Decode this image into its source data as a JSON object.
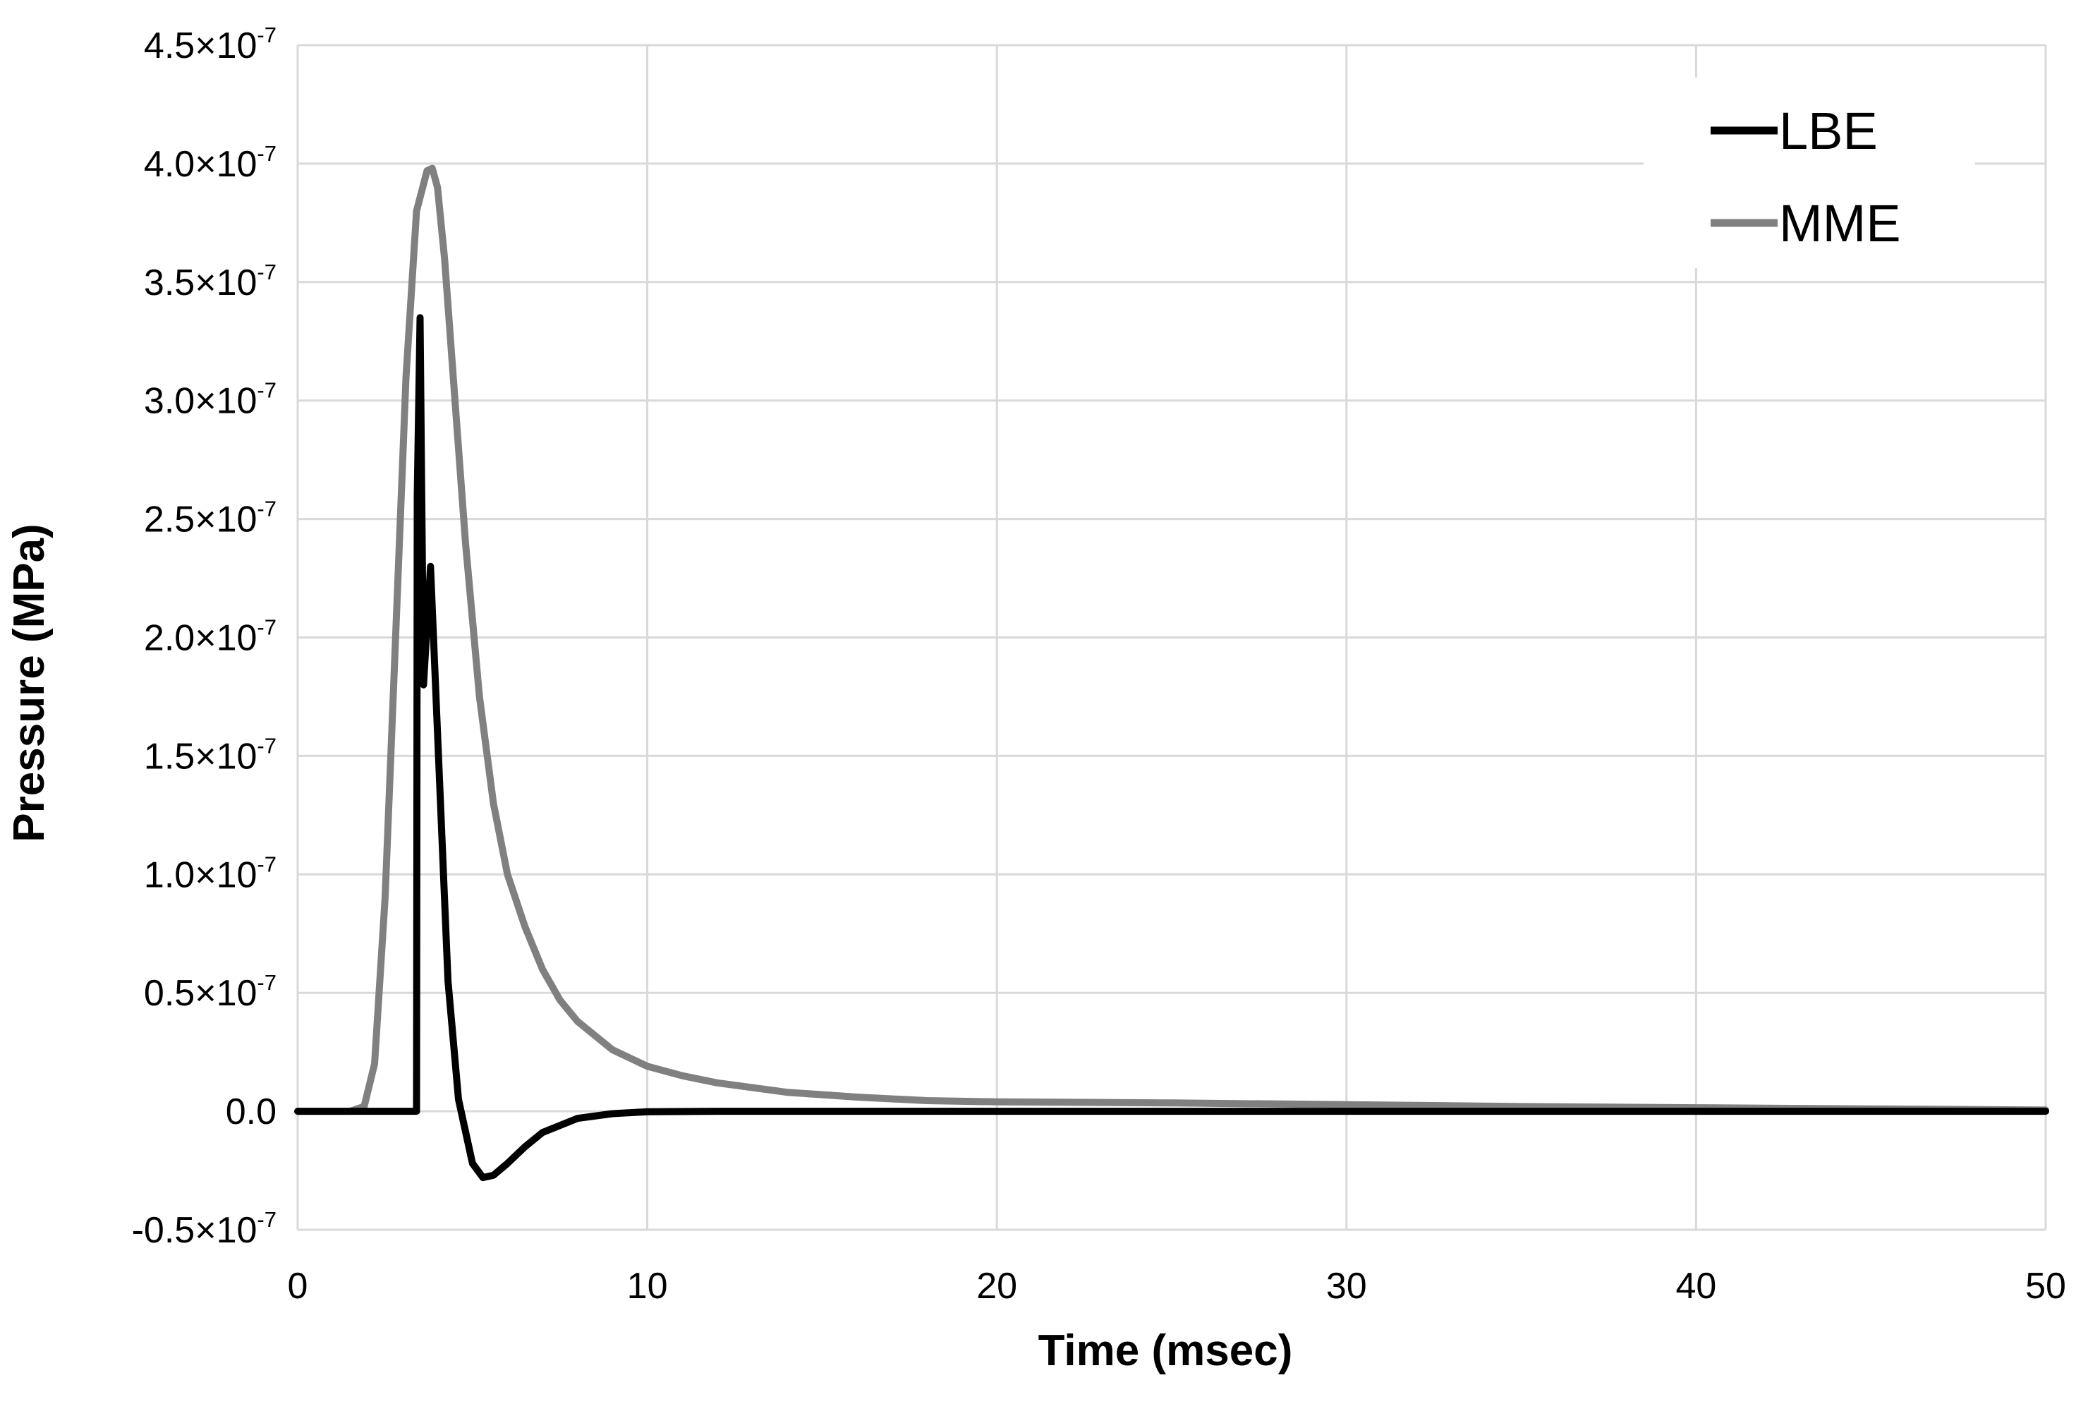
{
  "chart_data": {
    "type": "line",
    "xlabel": "Time (msec)",
    "ylabel": "Pressure (MPa)",
    "xlim": [
      0,
      50
    ],
    "ylim": [
      -5e-08,
      4.5e-07
    ],
    "grid": true,
    "legend_position": "top-right",
    "x_ticks": [
      {
        "value": 0,
        "label": "0"
      },
      {
        "value": 10,
        "label": "10"
      },
      {
        "value": 20,
        "label": "20"
      },
      {
        "value": 30,
        "label": "30"
      },
      {
        "value": 40,
        "label": "40"
      },
      {
        "value": 50,
        "label": "50"
      }
    ],
    "y_ticks": [
      {
        "value": -5e-08,
        "mantissa": "-0.5×10",
        "exp": "-7"
      },
      {
        "value": 0,
        "mantissa": "0.0",
        "exp": ""
      },
      {
        "value": 5e-08,
        "mantissa": "0.5×10",
        "exp": "-7"
      },
      {
        "value": 1e-07,
        "mantissa": "1.0×10",
        "exp": "-7"
      },
      {
        "value": 1.5e-07,
        "mantissa": "1.5×10",
        "exp": "-7"
      },
      {
        "value": 2e-07,
        "mantissa": "2.0×10",
        "exp": "-7"
      },
      {
        "value": 2.5e-07,
        "mantissa": "2.5×10",
        "exp": "-7"
      },
      {
        "value": 3e-07,
        "mantissa": "3.0×10",
        "exp": "-7"
      },
      {
        "value": 3.5e-07,
        "mantissa": "3.5×10",
        "exp": "-7"
      },
      {
        "value": 4e-07,
        "mantissa": "4.0×10",
        "exp": "-7"
      },
      {
        "value": 4.5e-07,
        "mantissa": "4.5×10",
        "exp": "-7"
      }
    ],
    "series": [
      {
        "name": "LBE",
        "color": "#000000",
        "x": [
          0,
          3.4,
          3.42,
          3.5,
          3.6,
          3.8,
          4.0,
          4.3,
          4.6,
          5.0,
          5.3,
          5.6,
          6.0,
          6.5,
          7.0,
          8.0,
          9.0,
          10.0,
          12.0,
          15.0,
          20.0,
          30.0,
          40.0,
          50.0
        ],
        "y": [
          0,
          0,
          2.6e-07,
          3.35e-07,
          1.8e-07,
          2.3e-07,
          1.6e-07,
          5.5e-08,
          5e-09,
          -2.2e-08,
          -2.8e-08,
          -2.7e-08,
          -2.2e-08,
          -1.5e-08,
          -9e-09,
          -3e-09,
          -1e-09,
          -2e-10,
          0,
          0,
          0,
          0,
          0,
          0
        ]
      },
      {
        "name": "MME",
        "color": "#808080",
        "x": [
          0,
          1.5,
          1.9,
          2.2,
          2.5,
          2.8,
          3.1,
          3.4,
          3.7,
          3.85,
          4.0,
          4.2,
          4.5,
          4.8,
          5.2,
          5.6,
          6.0,
          6.5,
          7.0,
          7.5,
          8.0,
          9.0,
          10.0,
          11.0,
          12.0,
          14.0,
          16.0,
          18.0,
          20.0,
          25.0,
          30.0,
          35.0,
          40.0,
          45.0,
          50.0
        ],
        "y": [
          0,
          0,
          2e-09,
          2e-08,
          9e-08,
          2e-07,
          3.1e-07,
          3.8e-07,
          3.97e-07,
          3.98e-07,
          3.9e-07,
          3.6e-07,
          3e-07,
          2.4e-07,
          1.75e-07,
          1.3e-07,
          1e-07,
          7.8e-08,
          6e-08,
          4.7e-08,
          3.8e-08,
          2.6e-08,
          1.9e-08,
          1.5e-08,
          1.2e-08,
          8e-09,
          6e-09,
          4.5e-09,
          4e-09,
          3.5e-09,
          2.8e-09,
          2e-09,
          1.5e-09,
          1e-09,
          5e-10
        ]
      }
    ]
  }
}
